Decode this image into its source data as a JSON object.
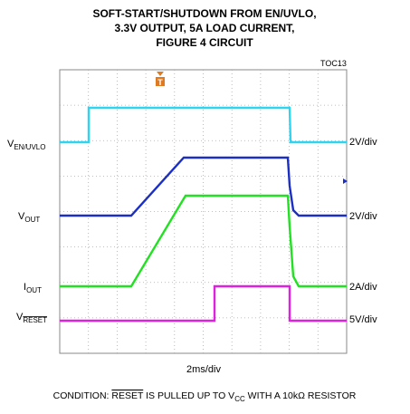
{
  "title": [
    "SOFT-START/SHUTDOWN FROM EN/UVLO,",
    "3.3V OUTPUT, 5A LOAD CURRENT,",
    "FIGURE 4 CIRCUIT"
  ],
  "figure_id": "TOC13",
  "traces": [
    {
      "name": "V",
      "sub": "EN/UVLO",
      "scale": "2V/div"
    },
    {
      "name": "V",
      "sub": "OUT",
      "scale": "2V/div"
    },
    {
      "name": "I",
      "sub": "OUT",
      "scale": "2A/div"
    },
    {
      "name": "V",
      "sub": "RESET",
      "scale": "5V/div"
    }
  ],
  "time_scale": "2ms/div",
  "trigger": "T",
  "condition": {
    "start": "CONDITION: ",
    "signal": "RESET",
    "middle": " IS PULLED UP TO V",
    "sub": "CC",
    "end": " WITH A 10kΩ RESISTOR"
  }
}
